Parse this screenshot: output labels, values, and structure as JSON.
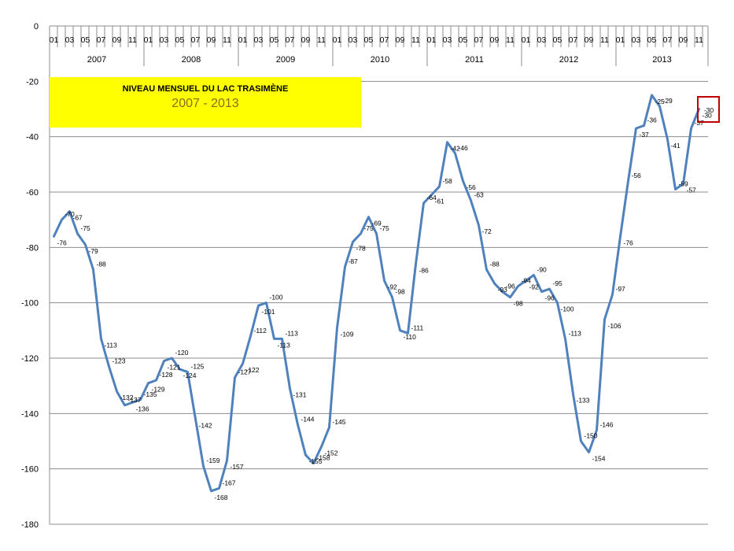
{
  "chart_data": {
    "type": "line",
    "title": "NIVEAU MENSUEL DU LAC TRASIMÈNE",
    "subtitle": "2007 - 2013",
    "years": [
      "2007",
      "2008",
      "2009",
      "2010",
      "2011",
      "2012",
      "2013"
    ],
    "month_ticks": [
      "01",
      "03",
      "05",
      "07",
      "09",
      "11"
    ],
    "ylim": [
      -180,
      0
    ],
    "yticks": [
      "0",
      "-20",
      "-40",
      "-60",
      "-80",
      "-100",
      "-120",
      "-140",
      "-160",
      "-180"
    ],
    "grid": true,
    "line_color": "#4f81bd",
    "highlight_color": "#c00000",
    "highlight_label": "-30",
    "values": [
      -76,
      -70,
      -67,
      -75,
      -79,
      -88,
      -113,
      -123,
      -132,
      -137,
      -136,
      -135,
      -129,
      -128,
      -121,
      -120,
      -124,
      -125,
      -142,
      -159,
      -168,
      -167,
      -157,
      -127,
      -122,
      -112,
      -101,
      -100,
      -113,
      -113,
      -131,
      -144,
      -155,
      -158,
      -152,
      -145,
      -109,
      -87,
      -78,
      -75,
      -69,
      -75,
      -92,
      -98,
      -110,
      -111,
      -86,
      -64,
      -61,
      -58,
      -42,
      -46,
      -56,
      -63,
      -72,
      -88,
      -93,
      -96,
      -98,
      -94,
      -92,
      -90,
      -96,
      -95,
      -100,
      -113,
      -133,
      -150,
      -154,
      -146,
      -106,
      -97,
      -76,
      -56,
      -37,
      -36,
      -25,
      -29,
      -41,
      -59,
      -57,
      -37,
      -30
    ]
  }
}
